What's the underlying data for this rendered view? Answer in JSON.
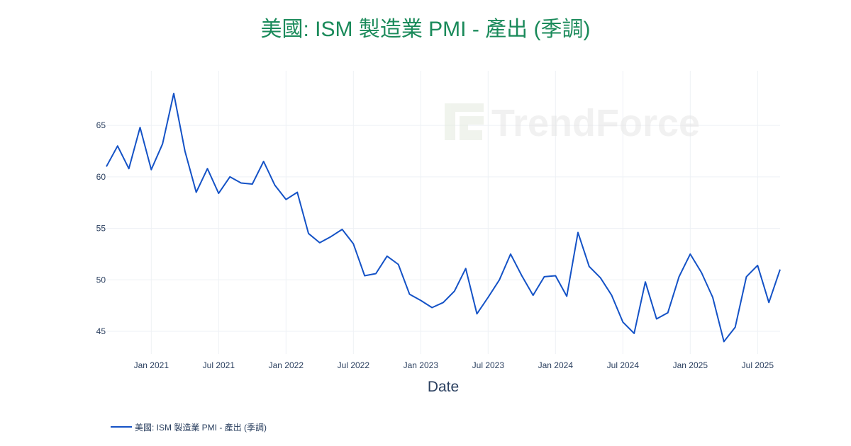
{
  "chart_data": {
    "type": "line",
    "title": "美國: ISM 製造業 PMI - 產出 (季調)",
    "xlabel": "Date",
    "ylabel": "",
    "x_tick_labels": [
      "Jan 2021",
      "Jul 2021",
      "Jan 2022",
      "Jul 2022",
      "Jan 2023",
      "Jul 2023",
      "Jan 2024",
      "Jul 2024",
      "Jan 2025",
      "Jul 2025"
    ],
    "y_ticks": [
      45,
      50,
      55,
      60,
      65
    ],
    "xlim": [
      "2020-09-01",
      "2025-09-01"
    ],
    "ylim": [
      42.8,
      70.3
    ],
    "grid": true,
    "legend_position": "bottom-left",
    "watermark": "TrendForce",
    "colors": {
      "title": "#1a8a5a",
      "line": "#1452c6",
      "text": "#2a3f5f",
      "grid": "#eef1f5"
    },
    "series": [
      {
        "name": "美國: ISM 製造業 PMI - 產出 (季調)",
        "x": [
          "2020-09",
          "2020-10",
          "2020-11",
          "2020-12",
          "2021-01",
          "2021-02",
          "2021-03",
          "2021-04",
          "2021-05",
          "2021-06",
          "2021-07",
          "2021-08",
          "2021-09",
          "2021-10",
          "2021-11",
          "2021-12",
          "2022-01",
          "2022-02",
          "2022-03",
          "2022-04",
          "2022-05",
          "2022-06",
          "2022-07",
          "2022-08",
          "2022-09",
          "2022-10",
          "2022-11",
          "2022-12",
          "2023-01",
          "2023-02",
          "2023-03",
          "2023-04",
          "2023-05",
          "2023-06",
          "2023-07",
          "2023-08",
          "2023-09",
          "2023-10",
          "2023-11",
          "2023-12",
          "2024-01",
          "2024-02",
          "2024-03",
          "2024-04",
          "2024-05",
          "2024-06",
          "2024-07",
          "2024-08",
          "2024-09",
          "2024-10",
          "2024-11",
          "2024-12",
          "2025-01",
          "2025-02",
          "2025-03",
          "2025-04",
          "2025-05",
          "2025-06",
          "2025-07",
          "2025-08",
          "2025-09"
        ],
        "values": [
          61.0,
          63.0,
          60.8,
          64.8,
          60.7,
          63.2,
          68.1,
          62.5,
          58.5,
          60.8,
          58.4,
          60.0,
          59.4,
          59.3,
          61.5,
          59.2,
          57.8,
          58.5,
          54.5,
          53.6,
          54.2,
          54.9,
          53.5,
          50.4,
          50.6,
          52.3,
          51.5,
          48.6,
          48.0,
          47.3,
          47.8,
          48.9,
          51.1,
          46.7,
          48.3,
          50.0,
          52.5,
          50.4,
          48.5,
          50.3,
          50.4,
          48.4,
          54.6,
          51.3,
          50.2,
          48.5,
          45.9,
          44.8,
          49.8,
          46.2,
          46.8,
          50.3,
          52.5,
          50.7,
          48.3,
          44.0,
          45.4,
          50.3,
          51.4,
          47.8,
          51.0
        ]
      }
    ]
  }
}
